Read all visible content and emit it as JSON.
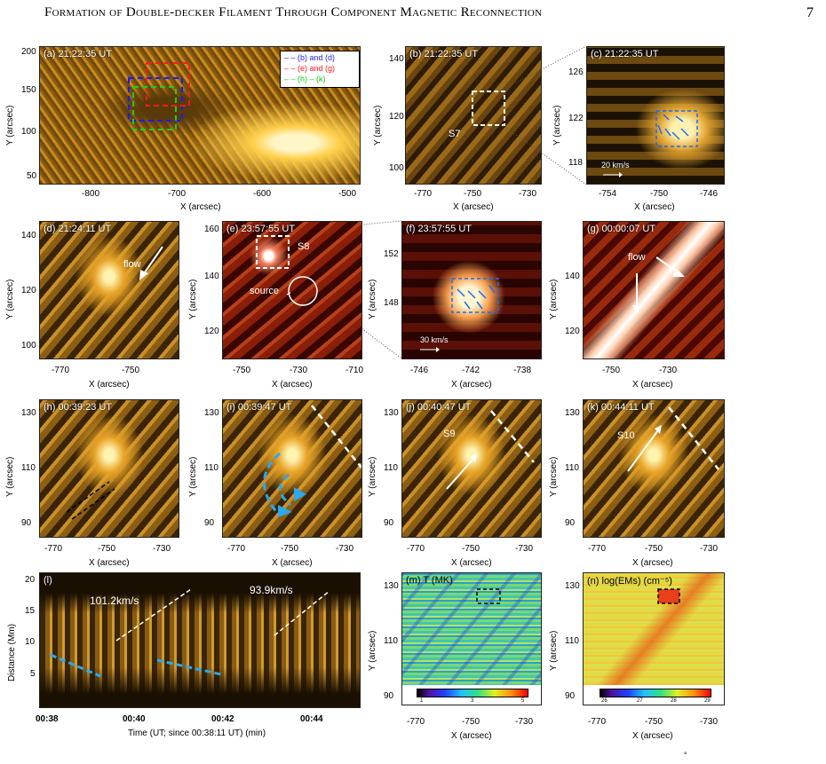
{
  "header": {
    "title": "Formation of Double-decker Filament Through Component Magnetic Reconnection",
    "page_number": "7"
  },
  "panels": {
    "a": {
      "label": "(a)  21:22:35 UT",
      "legend": [
        "(b) and (d)",
        "(e) and (g)",
        "(h) – (k)"
      ],
      "legend_colors": [
        "#1a1aff",
        "#ff1a1a",
        "#1ad01a"
      ],
      "yticks": [
        "200",
        "150",
        "100",
        "50"
      ],
      "xticks": [
        "-800",
        "-700",
        "-600",
        "-500"
      ],
      "xlabel": "X (arcsec)",
      "ylabel": "Y (arcsec)"
    },
    "b": {
      "label": "(b)  21:22:35 UT",
      "anno": "S7",
      "yticks": [
        "140",
        "120",
        "100"
      ],
      "xticks": [
        "-770",
        "-750",
        "-730"
      ],
      "xlabel": "X (arcsec)",
      "ylabel": "Y (arcsec)"
    },
    "c": {
      "label": "(c)  21:22:35 UT",
      "scale": "20 km/s",
      "yticks": [
        "126",
        "122",
        "118"
      ],
      "xticks": [
        "-754",
        "-750",
        "-746"
      ],
      "xlabel": "X (arcsec)",
      "ylabel": "Y (arcsec)"
    },
    "d": {
      "label": "(d)  21:24:11 UT",
      "anno": "flow",
      "yticks": [
        "140",
        "120",
        "100"
      ],
      "xticks": [
        "-770",
        "-750"
      ],
      "xlabel": "X (arcsec)",
      "ylabel": "Y (arcsec)"
    },
    "e": {
      "label": "(e)  23:57:55 UT",
      "anno1": "S8",
      "anno2": "source",
      "yticks": [
        "160",
        "140",
        "120"
      ],
      "xticks": [
        "-750",
        "-730",
        "-710"
      ],
      "xlabel": "X (arcsec)",
      "ylabel": "Y (arcsec)"
    },
    "f": {
      "label": "(f)  23:57:55 UT",
      "scale": "30 km/s",
      "yticks": [
        "152",
        "148"
      ],
      "xticks": [
        "-746",
        "-742",
        "-738"
      ],
      "xlabel": "X (arcsec)",
      "ylabel": "Y (arcsec)"
    },
    "g": {
      "label": "(g)  00:00:07 UT",
      "anno": "flow",
      "yticks": [
        "140",
        "120"
      ],
      "xticks": [
        "-750",
        "-730"
      ],
      "xlabel": "X (arcsec)",
      "ylabel": "Y (arcsec)"
    },
    "h": {
      "label": "(h)  00:39:23 UT",
      "yticks": [
        "130",
        "110",
        "90"
      ],
      "xticks": [
        "-770",
        "-750",
        "-730"
      ],
      "xlabel": "X (arcsec)",
      "ylabel": "Y (arcsec)"
    },
    "i": {
      "label": "(i)  00:39:47 UT",
      "yticks": [
        "130",
        "110",
        "90"
      ],
      "xticks": [
        "-770",
        "-750",
        "-730"
      ],
      "xlabel": "X (arcsec)",
      "ylabel": "Y (arcsec)"
    },
    "j": {
      "label": "(j)  00:40:47 UT",
      "anno": "S9",
      "yticks": [
        "130",
        "110",
        "90"
      ],
      "xticks": [
        "-770",
        "-750",
        "-730"
      ],
      "xlabel": "X (arcsec)",
      "ylabel": "Y (arcsec)"
    },
    "k": {
      "label": "(k)  00:44:11 UT",
      "anno": "S10",
      "yticks": [
        "130",
        "110",
        "90"
      ],
      "xticks": [
        "-770",
        "-750",
        "-730"
      ],
      "xlabel": "X (arcsec)",
      "ylabel": "Y (arcsec)"
    },
    "l": {
      "label": "(l)",
      "speed1": "101.2km/s",
      "speed2": "93.9km/s",
      "yticks": [
        "20",
        "15",
        "10",
        "5"
      ],
      "xticks": [
        "00:38",
        "00:40",
        "00:42",
        "00:44"
      ],
      "xlabel": "Time (UT; since 00:38:11 UT) (min)",
      "ylabel": "Distance (Mm)"
    },
    "m": {
      "label": "(m)  T (MK)",
      "cbar_ticks": [
        "1",
        "3",
        "5"
      ],
      "yticks": [
        "130",
        "110",
        "90"
      ],
      "xticks": [
        "-770",
        "-750",
        "-730"
      ],
      "xlabel": "X (arcsec)",
      "ylabel": "Y (arcsec)"
    },
    "n": {
      "label": "(n)  log(EMs) (cm⁻⁵)",
      "cbar_ticks": [
        "26",
        "27",
        "28",
        "29"
      ],
      "yticks": [
        "130",
        "110",
        "90"
      ],
      "xticks": [
        "-770",
        "-750",
        "-730"
      ],
      "xlabel": "X (arcsec)",
      "ylabel": "Y (arcsec)"
    }
  },
  "footer_mark": "°"
}
